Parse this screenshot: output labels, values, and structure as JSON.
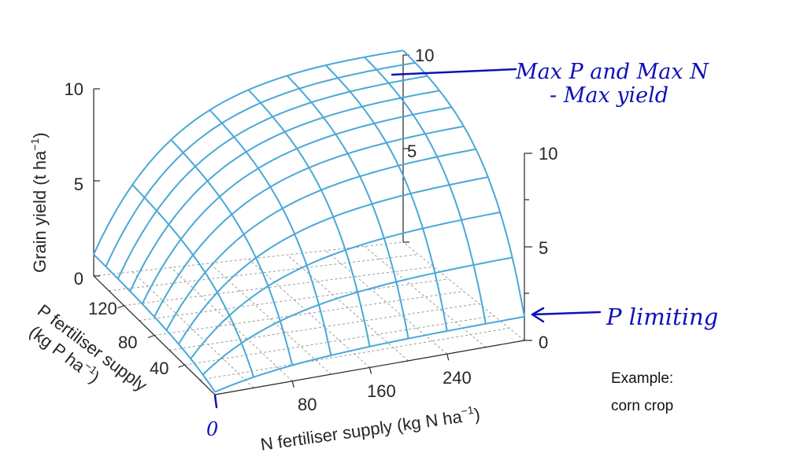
{
  "chart_data": {
    "type": "surface",
    "x_axis": {
      "label": "N fertiliser supply",
      "unit_label": "(kg N ha",
      "unit_exp": "−1",
      "unit_close": ")",
      "ticks": [
        "80",
        "160",
        "240"
      ],
      "range": [
        0,
        320
      ]
    },
    "y_axis": {
      "label": "P fertiliser supply",
      "unit_label": "(kg P ha",
      "unit_exp": "−1",
      "unit_close": ")",
      "ticks": [
        "40",
        "80",
        "120"
      ],
      "range": [
        0,
        160
      ]
    },
    "z_axis": {
      "label": "Grain yield (t ha",
      "unit_exp": "−1",
      "unit_close": ")",
      "ticks": [
        "0",
        "5",
        "10"
      ],
      "range": [
        0,
        10
      ]
    },
    "back_axis_ticks": [
      "5",
      "10"
    ],
    "right_axis_ticks": [
      "0",
      "5",
      "10"
    ],
    "origin_label": "0",
    "grid": true,
    "surface_color": "#4aa8d8",
    "max_yield": 10.3,
    "n_values": [
      0,
      40,
      80,
      120,
      160,
      200,
      240,
      280,
      320
    ],
    "p_values": [
      0,
      16,
      32,
      48,
      64,
      80,
      96,
      112,
      128,
      144,
      160
    ]
  },
  "annotations": {
    "max_label_line1": "Max P and Max N",
    "max_label_line2": "- Max yield",
    "p_limiting": "P limiting",
    "example_line1": "Example:",
    "example_line2": "corn crop"
  },
  "colors": {
    "ink": "#1010b8",
    "surface": "#4aa8d8",
    "axis": "#262626"
  }
}
